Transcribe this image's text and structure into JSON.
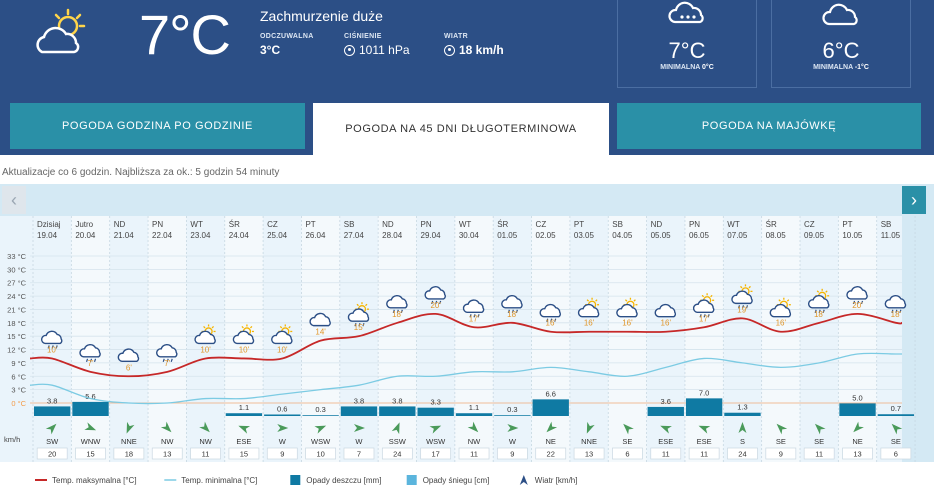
{
  "current": {
    "temp": "7°C",
    "description": "Zachmurzenie duże",
    "feels_label": "ODCZUWALNA",
    "feels_value": "3°C",
    "pressure_label": "CIŚNIENIE",
    "pressure_value": "1011 hPa",
    "wind_label": "WIATR",
    "wind_value": "18 km/h",
    "icon": "sun-cloud-icon"
  },
  "cards": [
    {
      "temp": "7°C",
      "min_label": "MINIMALNA",
      "min_value": "0°C",
      "icon": "rain-cloud-icon"
    },
    {
      "temp": "6°C",
      "min_label": "MINIMALNA",
      "min_value": "-1°C",
      "icon": "cloud-icon"
    }
  ],
  "tabs": [
    {
      "label": "POGODA GODZINA PO GODZINIE",
      "active": false
    },
    {
      "label": "POGODA NA 45 DNI DŁUGOTERMINOWA",
      "active": true
    },
    {
      "label": "POGODA NA MAJÓWKĘ",
      "active": false
    }
  ],
  "update_text": "Aktualizacje co 6 godzin. Najbliższa za ok.: 5 godzin 54 minuty",
  "nav": {
    "prev": "‹",
    "next": "›"
  },
  "colors": {
    "header": "#2c4f86",
    "tab": "#2a90a7",
    "chart_bg": "#eaf4fb",
    "max_line": "#c62828",
    "min_line": "#7ccbe3",
    "rain_bar": "#0f7aa3"
  },
  "chart_data": {
    "type": "line",
    "y_ticks": [
      "33 °C",
      "30 °C",
      "27 °C",
      "24 °C",
      "21 °C",
      "18 °C",
      "15 °C",
      "12 °C",
      "9 °C",
      "6 °C",
      "3 °C",
      "0 °C"
    ],
    "ylim": [
      0,
      33
    ],
    "unit_label": "km/h",
    "days": [
      {
        "name": "Dzisiaj",
        "date": "19.04",
        "max": 10,
        "max_label": "10'",
        "icon": "rain-cloud",
        "rain": "3.8",
        "rain_v": 3.8,
        "wind_dir": "SW",
        "wind": "20"
      },
      {
        "name": "Jutro",
        "date": "20.04",
        "max": 7,
        "max_label": "7'",
        "icon": "rain-cloud",
        "rain": "5.6",
        "rain_v": 5.6,
        "wind_dir": "WNW",
        "wind": "15"
      },
      {
        "name": "ND",
        "date": "21.04",
        "max": 6,
        "max_label": "6'",
        "icon": "cloud",
        "rain": "",
        "rain_v": 0,
        "wind_dir": "NNE",
        "wind": "18"
      },
      {
        "name": "PN",
        "date": "22.04",
        "max": 7,
        "max_label": "7'",
        "icon": "rain-cloud",
        "rain": "",
        "rain_v": 0,
        "wind_dir": "NW",
        "wind": "13"
      },
      {
        "name": "WT",
        "date": "23.04",
        "max": 10,
        "max_label": "10'",
        "icon": "sun-cloud",
        "rain": "",
        "rain_v": 0,
        "wind_dir": "NW",
        "wind": "11"
      },
      {
        "name": "ŚR",
        "date": "24.04",
        "max": 10,
        "max_label": "10'",
        "icon": "sun-cloud",
        "rain": "1.1",
        "rain_v": 1.1,
        "wind_dir": "ESE",
        "wind": "15"
      },
      {
        "name": "CZ",
        "date": "25.04",
        "max": 10,
        "max_label": "10'",
        "icon": "sun-cloud",
        "rain": "0.6",
        "rain_v": 0.6,
        "wind_dir": "W",
        "wind": "9"
      },
      {
        "name": "PT",
        "date": "26.04",
        "max": 14,
        "max_label": "14'",
        "icon": "cloud",
        "rain": "0.3",
        "rain_v": 0.3,
        "wind_dir": "WSW",
        "wind": "10"
      },
      {
        "name": "SB",
        "date": "27.04",
        "max": 15,
        "max_label": "15'",
        "icon": "sun-rain",
        "rain": "3.8",
        "rain_v": 3.8,
        "wind_dir": "W",
        "wind": "7"
      },
      {
        "name": "ND",
        "date": "28.04",
        "max": 18,
        "max_label": "18'",
        "icon": "rain-cloud",
        "rain": "3.8",
        "rain_v": 3.8,
        "wind_dir": "SSW",
        "wind": "24"
      },
      {
        "name": "PN",
        "date": "29.04",
        "max": 20,
        "max_label": "20'",
        "icon": "rain-cloud",
        "rain": "3.3",
        "rain_v": 3.3,
        "wind_dir": "WSW",
        "wind": "17"
      },
      {
        "name": "WT",
        "date": "30.04",
        "max": 17,
        "max_label": "17'",
        "icon": "rain-cloud",
        "rain": "1.1",
        "rain_v": 1.1,
        "wind_dir": "NW",
        "wind": "11"
      },
      {
        "name": "ŚR",
        "date": "01.05",
        "max": 18,
        "max_label": "18'",
        "icon": "rain-cloud",
        "rain": "0.3",
        "rain_v": 0.3,
        "wind_dir": "W",
        "wind": "9"
      },
      {
        "name": "CZ",
        "date": "02.05",
        "max": 16,
        "max_label": "16'",
        "icon": "rain-cloud",
        "rain": "6.6",
        "rain_v": 6.6,
        "wind_dir": "NE",
        "wind": "22"
      },
      {
        "name": "PT",
        "date": "03.05",
        "max": 16,
        "max_label": "16'",
        "icon": "sun-cloud",
        "rain": "",
        "rain_v": 0,
        "wind_dir": "NNE",
        "wind": "13"
      },
      {
        "name": "SB",
        "date": "04.05",
        "max": 16,
        "max_label": "16'",
        "icon": "sun-cloud",
        "rain": "",
        "rain_v": 0,
        "wind_dir": "SE",
        "wind": "6"
      },
      {
        "name": "ND",
        "date": "05.05",
        "max": 16,
        "max_label": "16'",
        "icon": "cloud",
        "rain": "3.6",
        "rain_v": 3.6,
        "wind_dir": "ESE",
        "wind": "11"
      },
      {
        "name": "PN",
        "date": "06.05",
        "max": 17,
        "max_label": "17'",
        "icon": "sun-rain",
        "rain": "7.0",
        "rain_v": 7.0,
        "wind_dir": "ESE",
        "wind": "11"
      },
      {
        "name": "WT",
        "date": "07.05",
        "max": 19,
        "max_label": "19'",
        "icon": "sun-rain",
        "rain": "1.3",
        "rain_v": 1.3,
        "wind_dir": "S",
        "wind": "24"
      },
      {
        "name": "ŚR",
        "date": "08.05",
        "max": 16,
        "max_label": "16'",
        "icon": "sun-cloud",
        "rain": "",
        "rain_v": 0,
        "wind_dir": "SE",
        "wind": "9"
      },
      {
        "name": "CZ",
        "date": "09.05",
        "max": 18,
        "max_label": "18'",
        "icon": "sun-rain",
        "rain": "",
        "rain_v": 0,
        "wind_dir": "SE",
        "wind": "11"
      },
      {
        "name": "PT",
        "date": "10.05",
        "max": 20,
        "max_label": "20'",
        "icon": "rain-cloud",
        "rain": "5.0",
        "rain_v": 5.0,
        "wind_dir": "NE",
        "wind": "13"
      },
      {
        "name": "SB",
        "date": "11.05",
        "max": 18,
        "max_label": "18'",
        "icon": "rain-cloud",
        "rain": "0.7",
        "rain_v": 0.7,
        "wind_dir": "SE",
        "wind": "6"
      }
    ],
    "min_series": [
      4,
      1,
      0,
      0,
      1,
      1,
      2,
      3,
      4,
      6,
      6,
      7,
      7,
      8,
      7,
      6,
      8,
      10,
      9,
      8,
      9,
      11,
      11
    ],
    "legend": [
      {
        "key": "max",
        "label": "Temp. maksymalna [°C]"
      },
      {
        "key": "min",
        "label": "Temp. minimalna [°C]"
      },
      {
        "key": "rain",
        "label": "Opady deszczu [mm]"
      },
      {
        "key": "snow",
        "label": "Opady śniegu [cm]"
      },
      {
        "key": "wind",
        "label": "Wiatr [km/h]"
      }
    ]
  }
}
